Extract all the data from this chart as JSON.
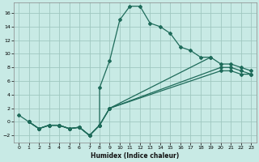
{
  "xlabel": "Humidex (Indice chaleur)",
  "bg_color": "#c8eae5",
  "grid_color": "#a0c8c0",
  "line_color": "#1e6b5a",
  "xlim": [
    -0.5,
    23.5
  ],
  "ylim": [
    -3,
    17.5
  ],
  "xticks": [
    0,
    1,
    2,
    3,
    4,
    5,
    6,
    7,
    8,
    9,
    10,
    11,
    12,
    13,
    14,
    15,
    16,
    17,
    18,
    19,
    20,
    21,
    22,
    23
  ],
  "yticks": [
    -2,
    0,
    2,
    4,
    6,
    8,
    10,
    12,
    14,
    16
  ],
  "lines": [
    {
      "x": [
        1,
        2,
        3,
        4,
        5,
        6,
        7,
        8,
        8,
        9,
        10,
        11,
        12,
        13,
        14,
        15,
        16,
        17,
        18,
        19
      ],
      "y": [
        0,
        -1,
        -0.5,
        -0.5,
        -1,
        -0.8,
        -2,
        -0.5,
        5,
        9,
        15,
        17,
        17,
        14.5,
        14,
        13,
        11,
        10.5,
        9.5,
        9.5
      ]
    },
    {
      "x": [
        0,
        1,
        2,
        3,
        4,
        5,
        6,
        7,
        8,
        9,
        19,
        20,
        21,
        22,
        23
      ],
      "y": [
        1,
        0,
        -1,
        -0.5,
        -0.5,
        -1,
        -0.8,
        -2,
        -0.5,
        2,
        9.5,
        8.5,
        8.5,
        8,
        7.5
      ]
    },
    {
      "x": [
        1,
        2,
        3,
        4,
        5,
        6,
        7,
        8,
        9,
        20,
        21,
        22,
        23
      ],
      "y": [
        0,
        -1,
        -0.5,
        -0.5,
        -1,
        -0.8,
        -2,
        -0.5,
        2,
        8,
        8,
        7.5,
        7
      ]
    },
    {
      "x": [
        1,
        2,
        3,
        4,
        5,
        6,
        7,
        8,
        9,
        20,
        21,
        22,
        23
      ],
      "y": [
        0,
        -1,
        -0.5,
        -0.5,
        -1,
        -0.8,
        -2,
        -0.5,
        2,
        7.5,
        7.5,
        7,
        7
      ]
    }
  ]
}
